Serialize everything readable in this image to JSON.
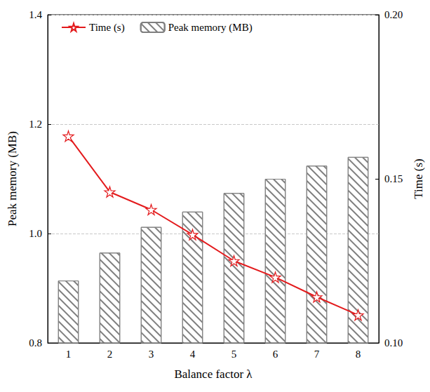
{
  "chart_data": {
    "type": "bar",
    "x_label": "Balance factor λ",
    "y_label": "Peak memory (MB)",
    "y2_label": "Time (s)",
    "categories": [
      "1",
      "2",
      "3",
      "4",
      "5",
      "6",
      "7",
      "8"
    ],
    "series": [
      {
        "name": "Time (s)",
        "type": "line",
        "axis": "y2",
        "color": "#e31a1c",
        "marker": "star",
        "values": [
          0.163,
          0.146,
          0.1406,
          0.133,
          0.125,
          0.12,
          0.114,
          0.1085
        ]
      },
      {
        "name": "Peak memory (MB)",
        "type": "bar",
        "color": "#7f7f7f",
        "values": [
          0.914,
          0.965,
          1.012,
          1.04,
          1.074,
          1.1,
          1.124,
          1.14
        ]
      }
    ],
    "ylim": [
      0.8,
      1.4
    ],
    "yticks": [
      0.8,
      {
        "value": 1.0,
        "label": "1.0"
      },
      1.2,
      1.4
    ],
    "y2lim": [
      0.1,
      0.2
    ],
    "y2ticks": [
      {
        "value": 0.1,
        "label": "0.10"
      },
      0.15,
      {
        "value": 0.2,
        "label": "0.20"
      }
    ],
    "grid": true,
    "legend": "upper left"
  }
}
